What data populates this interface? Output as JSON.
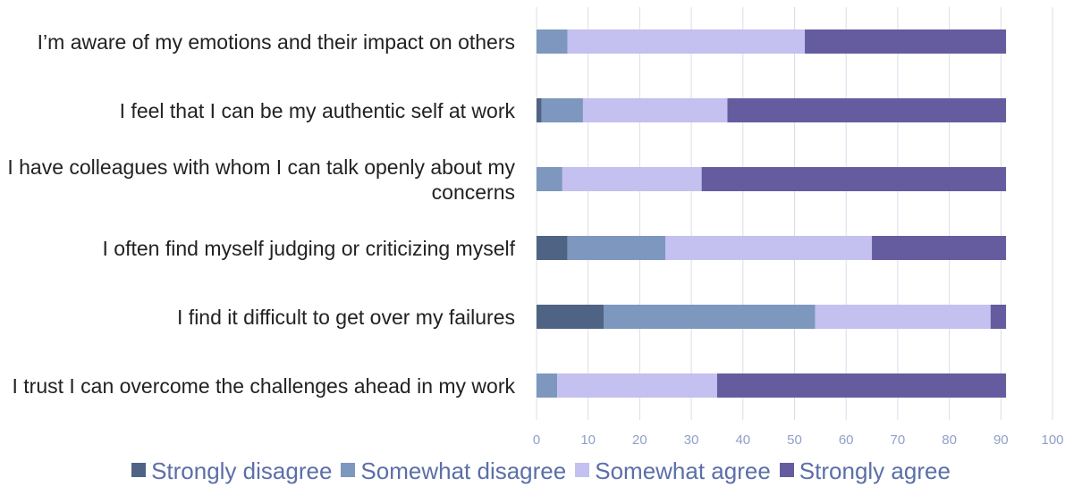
{
  "chart_data": {
    "type": "stacked-bar-horizontal",
    "categories": [
      "I’m aware of my emotions and their impact on others",
      "I feel that I can be my authentic self at work",
      "I have colleagues with whom I can talk openly about my concerns",
      "I often find myself judging or criticizing myself",
      "I find it difficult to get over my failures",
      "I trust I can overcome the challenges ahead in my work"
    ],
    "series": [
      {
        "name": "Strongly disagree",
        "color": "#4f6484",
        "values": [
          0,
          1,
          0,
          6,
          13,
          0
        ]
      },
      {
        "name": "Somewhat disagree",
        "color": "#7d97bf",
        "values": [
          6,
          8,
          5,
          19,
          41,
          4
        ]
      },
      {
        "name": "Somewhat agree",
        "color": "#c4c0ef",
        "values": [
          46,
          28,
          27,
          40,
          34,
          31
        ]
      },
      {
        "name": "Strongly agree",
        "color": "#655ca0",
        "values": [
          39,
          54,
          59,
          26,
          3,
          56
        ]
      }
    ],
    "xlim": [
      0,
      100
    ],
    "xticks": [
      0,
      10,
      20,
      30,
      40,
      50,
      60,
      70,
      80,
      90,
      100
    ],
    "grid": true
  }
}
